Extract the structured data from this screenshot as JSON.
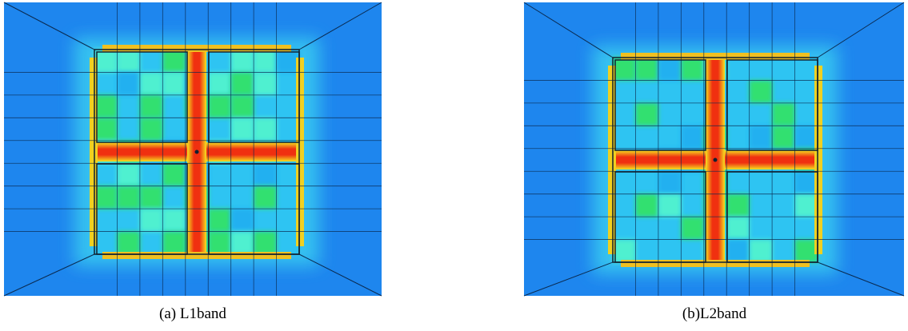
{
  "figure": {
    "panels": [
      {
        "caption": "(a) L1band"
      },
      {
        "caption": "(b)L2band"
      }
    ]
  }
}
